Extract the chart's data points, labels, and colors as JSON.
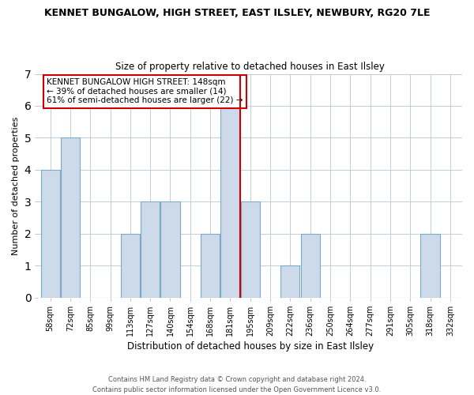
{
  "title": "KENNET BUNGALOW, HIGH STREET, EAST ILSLEY, NEWBURY, RG20 7LE",
  "subtitle": "Size of property relative to detached houses in East Ilsley",
  "xlabel": "Distribution of detached houses by size in East Ilsley",
  "ylabel": "Number of detached properties",
  "bar_color": "#ccdaea",
  "bar_edge_color": "#7aaac8",
  "annotation_line_color": "#cc0000",
  "annotation_box_color": "#cc0000",
  "annotation_text_line1": "KENNET BUNGALOW HIGH STREET: 148sqm",
  "annotation_text_line2": "← 39% of detached houses are smaller (14)",
  "annotation_text_line3": "61% of semi-detached houses are larger (22) →",
  "bins": [
    "58sqm",
    "72sqm",
    "85sqm",
    "99sqm",
    "113sqm",
    "127sqm",
    "140sqm",
    "154sqm",
    "168sqm",
    "181sqm",
    "195sqm",
    "209sqm",
    "222sqm",
    "236sqm",
    "250sqm",
    "264sqm",
    "277sqm",
    "291sqm",
    "305sqm",
    "318sqm",
    "332sqm"
  ],
  "counts": [
    4,
    5,
    0,
    0,
    2,
    3,
    3,
    0,
    2,
    6,
    3,
    0,
    1,
    2,
    0,
    0,
    0,
    0,
    0,
    2,
    0
  ],
  "property_line_x": 9.5,
  "ylim": [
    0,
    7
  ],
  "yticks": [
    0,
    1,
    2,
    3,
    4,
    5,
    6,
    7
  ],
  "footer_line1": "Contains HM Land Registry data © Crown copyright and database right 2024.",
  "footer_line2": "Contains public sector information licensed under the Open Government Licence v3.0.",
  "background_color": "#ffffff",
  "figsize": [
    6.0,
    5.0
  ],
  "dpi": 100
}
